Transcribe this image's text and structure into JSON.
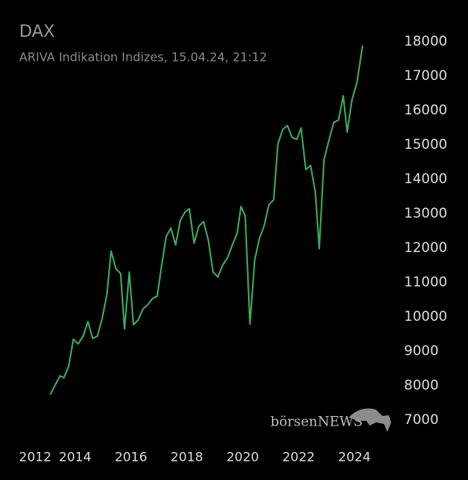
{
  "chart_data": {
    "type": "line",
    "title": "DAX",
    "subtitle": "ARIVA Indikation Indizes, 15.04.24, 21:12",
    "watermark": "börsenNEWS",
    "x": [
      2013.11,
      2013.46,
      2013.6,
      2013.77,
      2013.94,
      2014.11,
      2014.29,
      2014.46,
      2014.63,
      2014.8,
      2014.97,
      2015.14,
      2015.29,
      2015.46,
      2015.63,
      2015.77,
      2015.94,
      2016.09,
      2016.26,
      2016.43,
      2016.6,
      2016.77,
      2016.94,
      2017.09,
      2017.26,
      2017.43,
      2017.6,
      2017.77,
      2017.94,
      2018.09,
      2018.26,
      2018.43,
      2018.6,
      2018.77,
      2018.94,
      2019.11,
      2019.29,
      2019.46,
      2019.63,
      2019.8,
      2019.94,
      2020.09,
      2020.26,
      2020.43,
      2020.6,
      2020.77,
      2020.94,
      2021.11,
      2021.26,
      2021.43,
      2021.6,
      2021.77,
      2021.94,
      2022.09,
      2022.26,
      2022.43,
      2022.6,
      2022.74,
      2022.91,
      2023.09,
      2023.26,
      2023.43,
      2023.6,
      2023.74,
      2023.91,
      2024.09,
      2024.29
    ],
    "series": [
      {
        "name": "DAX",
        "color": "#3daa5c",
        "values": [
          7740,
          8280,
          8230,
          8560,
          9350,
          9210,
          9440,
          9860,
          9370,
          9440,
          9950,
          10650,
          11910,
          11400,
          11260,
          9650,
          11300,
          9770,
          9910,
          10230,
          10350,
          10530,
          10600,
          11440,
          12330,
          12580,
          12090,
          12810,
          13050,
          13140,
          12140,
          12630,
          12770,
          12230,
          11300,
          11160,
          11510,
          11720,
          12090,
          12420,
          13210,
          12930,
          9790,
          11650,
          12280,
          12650,
          13260,
          13400,
          15020,
          15440,
          15560,
          15210,
          15160,
          15490,
          14280,
          14400,
          13630,
          11980,
          14560,
          15140,
          15650,
          15720,
          16420,
          15370,
          16300,
          16810,
          17880
        ]
      }
    ],
    "xlim": [
      2012,
      2024.5
    ],
    "xticks": [
      2012,
      2014,
      2016,
      2018,
      2020,
      2022,
      2024
    ],
    "ylim": [
      7000,
      18000
    ],
    "yticks": [
      7000,
      8000,
      9000,
      10000,
      11000,
      12000,
      13000,
      14000,
      15000,
      16000,
      17000,
      18000
    ],
    "yaxis_side": "right",
    "grid": false
  }
}
